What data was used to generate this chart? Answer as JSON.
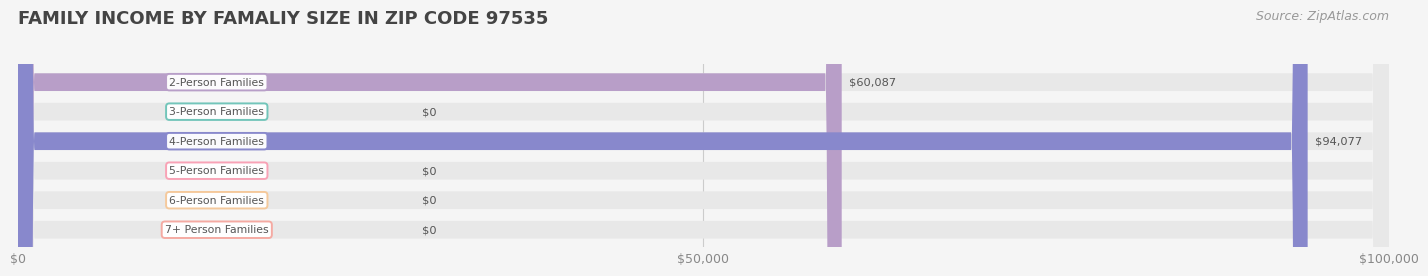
{
  "title": "FAMILY INCOME BY FAMALIY SIZE IN ZIP CODE 97535",
  "source": "Source: ZipAtlas.com",
  "categories": [
    "2-Person Families",
    "3-Person Families",
    "4-Person Families",
    "5-Person Families",
    "6-Person Families",
    "7+ Person Families"
  ],
  "values": [
    60087,
    0,
    94077,
    0,
    0,
    0
  ],
  "bar_colors": [
    "#b89ec8",
    "#6ec4b8",
    "#8888cc",
    "#f9a0b4",
    "#f5c899",
    "#f5a8a0"
  ],
  "value_labels": [
    "$60,087",
    "$0",
    "$94,077",
    "$0",
    "$0",
    "$0"
  ],
  "xlim": [
    0,
    100000
  ],
  "xticks": [
    0,
    50000,
    100000
  ],
  "xtick_labels": [
    "$0",
    "$50,000",
    "$100,000"
  ],
  "bg_color": "#f5f5f5",
  "bar_bg_color": "#e8e8e8",
  "title_fontsize": 13,
  "source_fontsize": 9,
  "bar_height": 0.6
}
